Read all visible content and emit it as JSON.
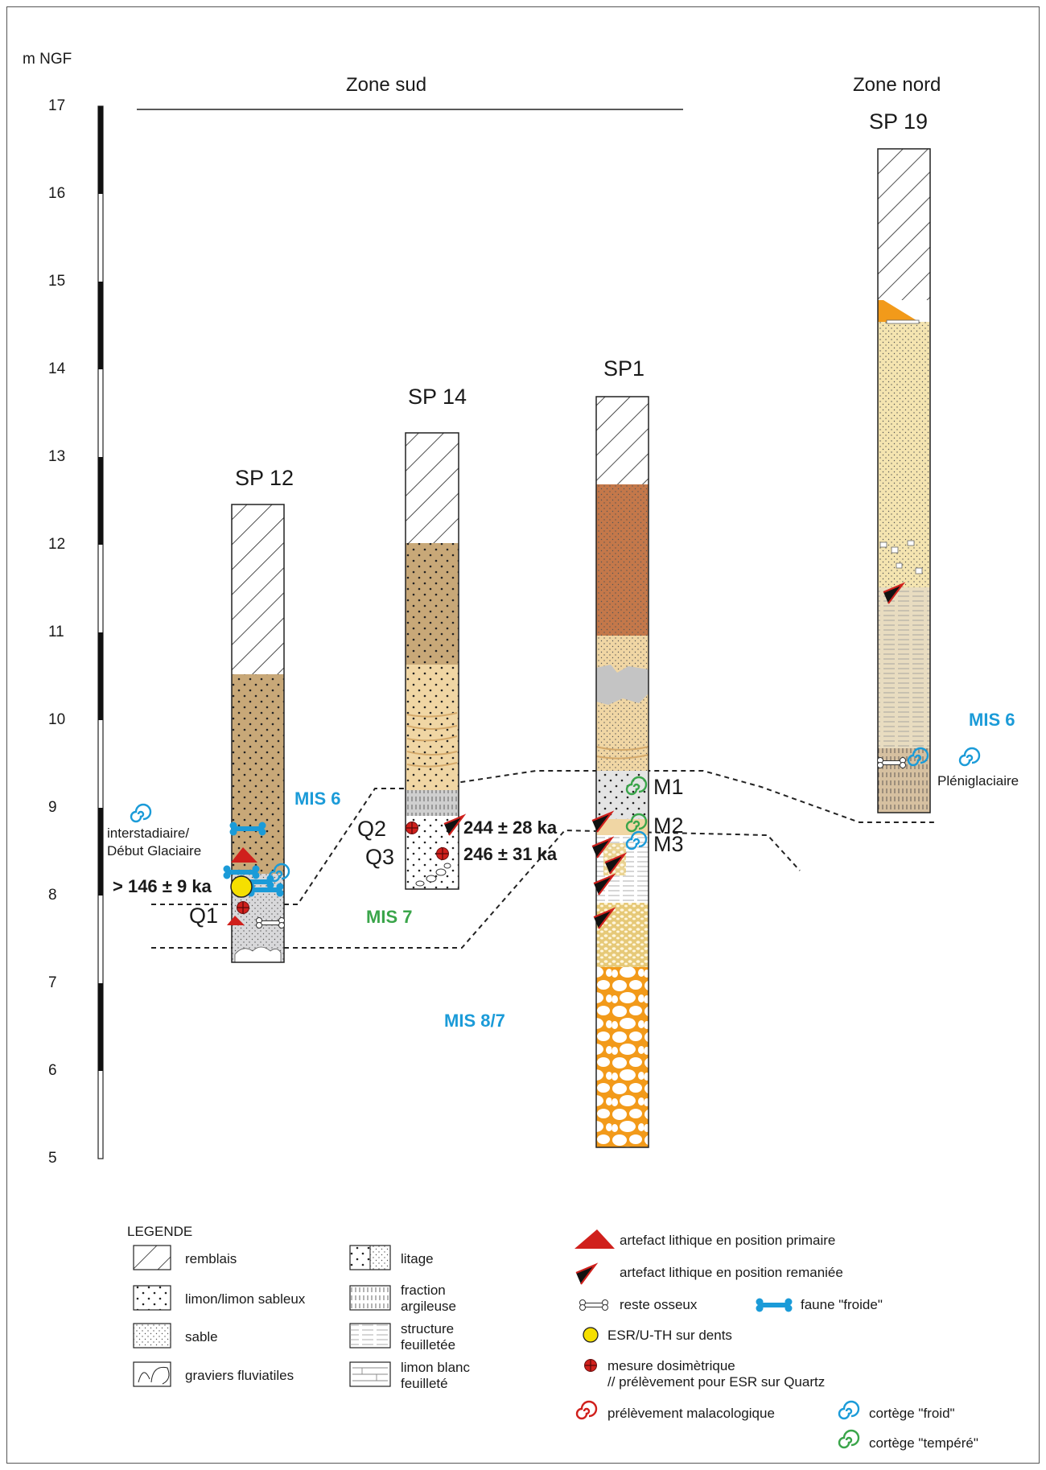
{
  "y_axis": {
    "unit": "m NGF",
    "ticks": [
      "17",
      "16",
      "15",
      "14",
      "13",
      "12",
      "11",
      "10",
      "9",
      "8",
      "7",
      "6",
      "5"
    ]
  },
  "zones": {
    "south": "Zone sud",
    "north": "Zone nord"
  },
  "columns": {
    "sp12": "SP 12",
    "sp14": "SP 14",
    "sp1": "SP1",
    "sp19": "SP 19"
  },
  "mis": {
    "mis6_south": "MIS 6",
    "mis7": "MIS 7",
    "mis87": "MIS 8/7",
    "mis6_north": "MIS 6"
  },
  "annotations": {
    "interstadiaire": "interstadiaire/\nDébut Glaciaire",
    "date_q1": "> 146 ± 9 ka",
    "q1": "Q1",
    "q2": "Q2",
    "q3": "Q3",
    "date_q2": "244 ± 28 ka",
    "date_q3": "246 ± 31 ka",
    "m1": "M1",
    "m2": "M2",
    "m3": "M3",
    "pleniglaciaire": "Pléniglaciaire"
  },
  "legend": {
    "title": "LEGENDE",
    "remblais": "remblais",
    "limon": "limon/limon sableux",
    "sable": "sable",
    "graviers": "graviers fluviatiles",
    "litage": "litage",
    "fraction": "fraction\nargileuse",
    "structure": "structure\nfeuilletée",
    "limon_blanc": "limon blanc\nfeuilleté",
    "artefact_primaire": "artefact lithique en position primaire",
    "artefact_remanie": "artefact lithique en position remaniée",
    "reste_osseux": "reste osseux",
    "faune": "faune \"froide\"",
    "esr": "ESR/U-TH sur dents",
    "mesure": "mesure dosimètrique\n// prélèvement pour ESR sur Quartz",
    "malaco": "prélèvement malacologique",
    "froid": "cortège \"froid\"",
    "tempere": "cortège \"tempéré\""
  },
  "colors": {
    "sand_brown": "#c8a878",
    "light_sand": "#f0d6a4",
    "orange": "#f29a1a",
    "rust": "#c4784a",
    "blue": "#1b9bd8",
    "green": "#3aa54a",
    "red": "#d0201c",
    "yellow": "#f5df00",
    "grey": "#d8d8da"
  }
}
